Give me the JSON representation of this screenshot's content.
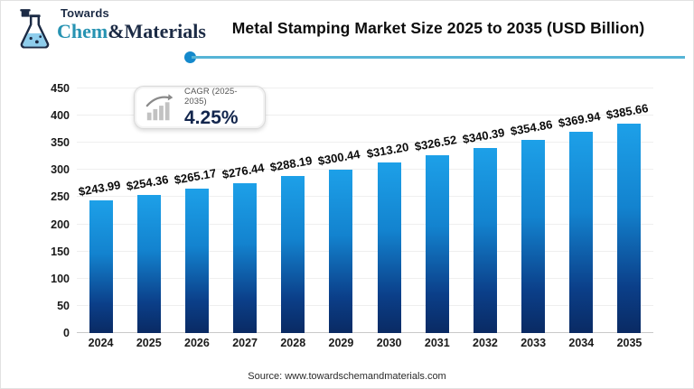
{
  "logo": {
    "top": "Towards",
    "name_primary": "Chem",
    "name_amp": "&",
    "name_secondary": "Materials"
  },
  "header": {
    "title": "Metal Stamping Market Size 2025 to 2035 (USD Billion)"
  },
  "cagr": {
    "label": "CAGR (2025-2035)",
    "value": "4.25%"
  },
  "source": {
    "text": "Source: www.towardschemandmaterials.com"
  },
  "colors": {
    "bar_gradient_top": "#1da0e8",
    "bar_gradient_bottom": "#0a2a63",
    "accent_line": "#56b4d6",
    "accent_dot": "#1489cc",
    "navy": "#1c2b45",
    "teal": "#2793b2"
  },
  "chart_data": {
    "type": "bar",
    "title": "Metal Stamping Market Size 2025 to 2035 (USD Billion)",
    "xlabel": "",
    "ylabel": "",
    "categories": [
      "2024",
      "2025",
      "2026",
      "2027",
      "2028",
      "2029",
      "2030",
      "2031",
      "2032",
      "2033",
      "2034",
      "2035"
    ],
    "values": [
      243.99,
      254.36,
      265.17,
      276.44,
      288.19,
      300.44,
      313.2,
      326.52,
      340.39,
      354.86,
      369.94,
      385.66
    ],
    "value_labels": [
      "$243.99",
      "$254.36",
      "$265.17",
      "$276.44",
      "$288.19",
      "$300.44",
      "$313.20",
      "$326.52",
      "$340.39",
      "$354.86",
      "$369.94",
      "$385.66"
    ],
    "ylim": [
      0,
      450
    ],
    "ytick_step": 50,
    "grid": true,
    "legend_position": "none",
    "annotation": "CAGR (2025-2035) 4.25%"
  }
}
